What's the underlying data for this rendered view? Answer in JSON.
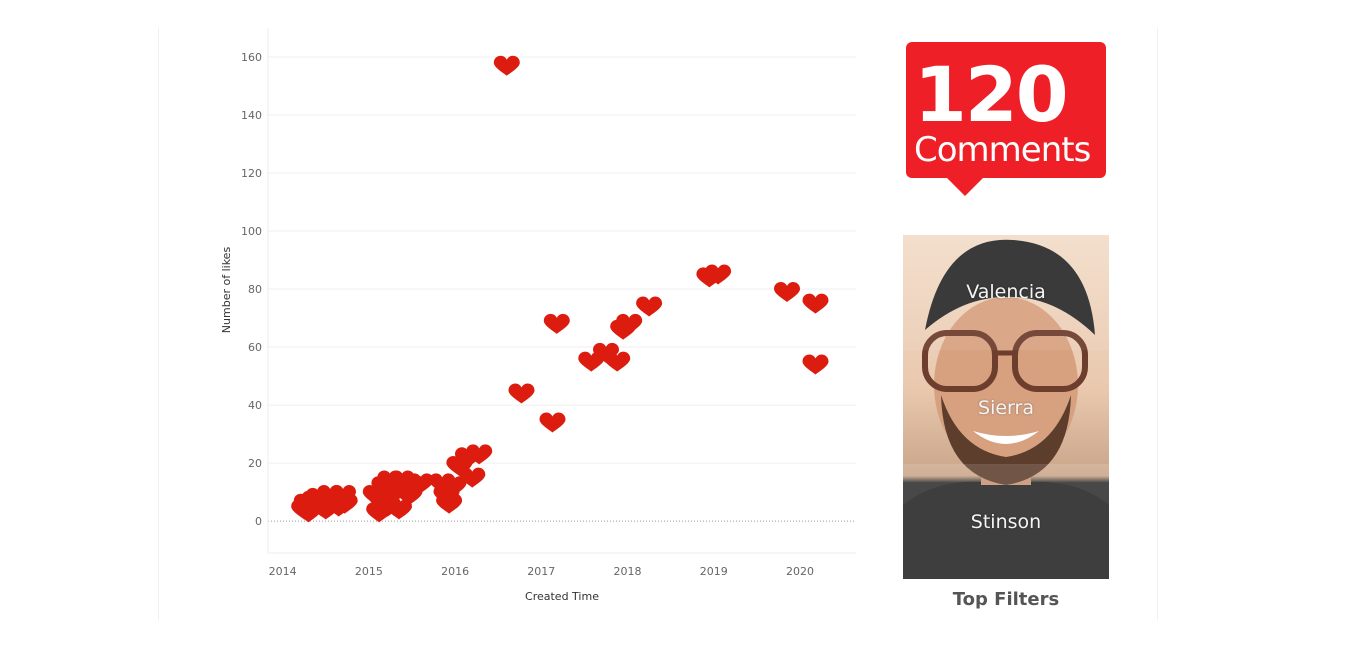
{
  "chart_data": {
    "type": "scatter",
    "marker": "heart-icon",
    "marker_color": "#dd1c10",
    "xlabel": "Created Time",
    "ylabel": "Number of likes",
    "x_ticks": [
      "2014",
      "2015",
      "2016",
      "2017",
      "2018",
      "2019",
      "2020"
    ],
    "y_ticks": [
      0,
      20,
      40,
      60,
      80,
      100,
      120,
      140,
      160
    ],
    "xlim": [
      2013.83,
      2020.65
    ],
    "ylim": [
      -11,
      170
    ],
    "grid": "horizontal",
    "points": [
      {
        "x": 2014.25,
        "y": 4
      },
      {
        "x": 2014.28,
        "y": 6
      },
      {
        "x": 2014.3,
        "y": 3
      },
      {
        "x": 2014.33,
        "y": 5
      },
      {
        "x": 2014.37,
        "y": 7
      },
      {
        "x": 2014.42,
        "y": 8
      },
      {
        "x": 2014.45,
        "y": 5
      },
      {
        "x": 2014.5,
        "y": 4
      },
      {
        "x": 2014.55,
        "y": 9
      },
      {
        "x": 2014.6,
        "y": 7
      },
      {
        "x": 2014.65,
        "y": 5
      },
      {
        "x": 2014.7,
        "y": 9
      },
      {
        "x": 2014.72,
        "y": 6
      },
      {
        "x": 2015.08,
        "y": 9
      },
      {
        "x": 2015.12,
        "y": 3
      },
      {
        "x": 2015.15,
        "y": 7
      },
      {
        "x": 2015.18,
        "y": 12
      },
      {
        "x": 2015.22,
        "y": 5
      },
      {
        "x": 2015.25,
        "y": 14
      },
      {
        "x": 2015.3,
        "y": 10
      },
      {
        "x": 2015.35,
        "y": 4
      },
      {
        "x": 2015.38,
        "y": 14
      },
      {
        "x": 2015.42,
        "y": 12
      },
      {
        "x": 2015.47,
        "y": 9
      },
      {
        "x": 2015.52,
        "y": 12
      },
      {
        "x": 2015.6,
        "y": 13
      },
      {
        "x": 2015.85,
        "y": 13
      },
      {
        "x": 2015.9,
        "y": 9
      },
      {
        "x": 2015.93,
        "y": 6
      },
      {
        "x": 2015.98,
        "y": 12
      },
      {
        "x": 2016.05,
        "y": 19
      },
      {
        "x": 2016.15,
        "y": 22
      },
      {
        "x": 2016.2,
        "y": 15
      },
      {
        "x": 2016.28,
        "y": 23
      },
      {
        "x": 2016.6,
        "y": 157
      },
      {
        "x": 2016.77,
        "y": 44
      },
      {
        "x": 2017.13,
        "y": 34
      },
      {
        "x": 2017.18,
        "y": 68
      },
      {
        "x": 2017.58,
        "y": 55
      },
      {
        "x": 2017.75,
        "y": 58
      },
      {
        "x": 2017.88,
        "y": 55
      },
      {
        "x": 2017.95,
        "y": 66
      },
      {
        "x": 2018.02,
        "y": 68
      },
      {
        "x": 2018.25,
        "y": 74
      },
      {
        "x": 2018.95,
        "y": 84
      },
      {
        "x": 2019.05,
        "y": 85
      },
      {
        "x": 2019.85,
        "y": 79
      },
      {
        "x": 2020.18,
        "y": 75
      },
      {
        "x": 2020.18,
        "y": 54
      }
    ]
  },
  "kpi": {
    "value": "120",
    "label": "Comments",
    "color": "#ee1f26"
  },
  "photo_panel": {
    "filters": [
      "Valencia",
      "Sierra",
      "Stinson"
    ],
    "caption": "Top Filters"
  }
}
